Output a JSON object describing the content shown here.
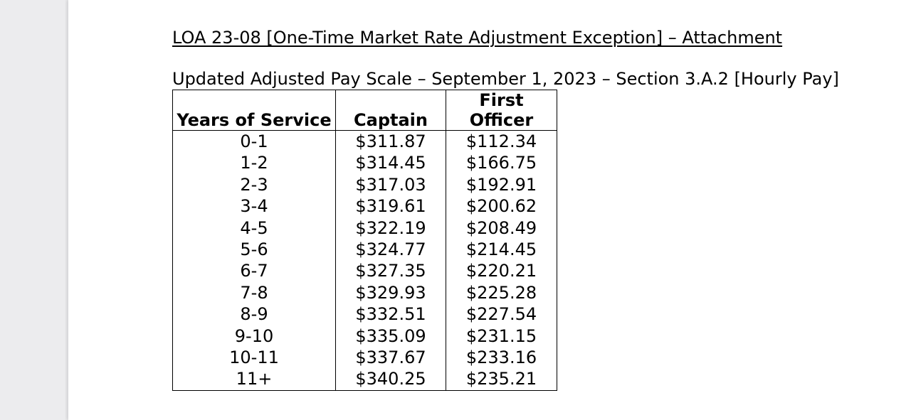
{
  "document": {
    "title": "LOA 23-08 [One-Time Market Rate Adjustment Exception] – Attachment",
    "subtitle": "Updated Adjusted Pay Scale – September 1, 2023 – Section 3.A.2 [Hourly Pay]"
  },
  "table": {
    "headers": {
      "years": "Years of Service",
      "captain": "Captain",
      "first_officer_line1": "First",
      "first_officer_line2": "Officer"
    },
    "rows": [
      {
        "years": "0-1",
        "captain": "$311.87",
        "first_officer": "$112.34"
      },
      {
        "years": "1-2",
        "captain": "$314.45",
        "first_officer": "$166.75"
      },
      {
        "years": "2-3",
        "captain": "$317.03",
        "first_officer": "$192.91"
      },
      {
        "years": "3-4",
        "captain": "$319.61",
        "first_officer": "$200.62"
      },
      {
        "years": "4-5",
        "captain": "$322.19",
        "first_officer": "$208.49"
      },
      {
        "years": "5-6",
        "captain": "$324.77",
        "first_officer": "$214.45"
      },
      {
        "years": "6-7",
        "captain": "$327.35",
        "first_officer": "$220.21"
      },
      {
        "years": "7-8",
        "captain": "$329.93",
        "first_officer": "$225.28"
      },
      {
        "years": "8-9",
        "captain": "$332.51",
        "first_officer": "$227.54"
      },
      {
        "years": "9-10",
        "captain": "$335.09",
        "first_officer": "$231.15"
      },
      {
        "years": "10-11",
        "captain": "$337.67",
        "first_officer": "$233.16"
      },
      {
        "years": "11+",
        "captain": "$340.25",
        "first_officer": "$235.21"
      }
    ]
  }
}
